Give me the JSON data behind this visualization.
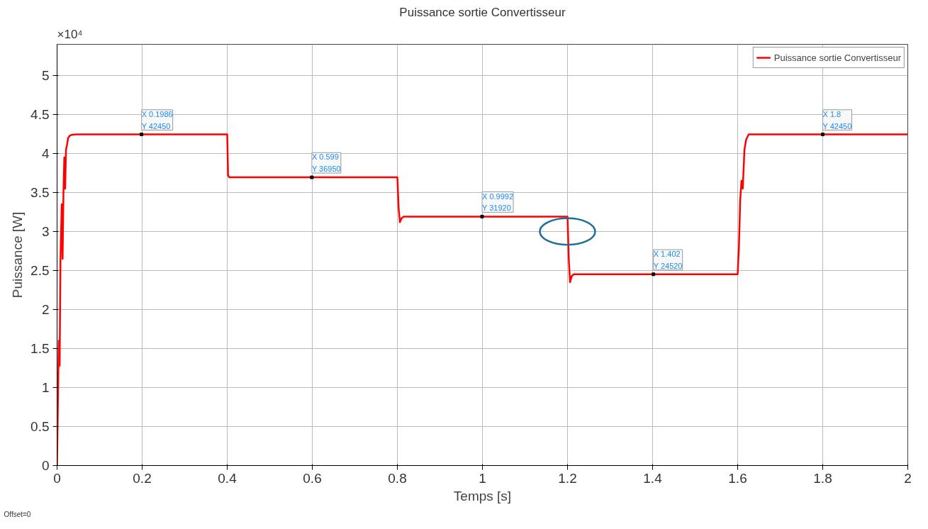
{
  "chart_data": {
    "type": "line",
    "title": "Puissance sortie Convertisseur",
    "xlabel": "Temps [s]",
    "ylabel": "Puissance [W]",
    "x": [
      0,
      0.004,
      0.006,
      0.008,
      0.011,
      0.013,
      0.015,
      0.017,
      0.019,
      0.021,
      0.023,
      0.026,
      0.03,
      0.035,
      0.045,
      0.4,
      0.402,
      0.405,
      0.8,
      0.803,
      0.806,
      0.81,
      0.815,
      1.2,
      1.203,
      1.206,
      1.21,
      1.215,
      1.6,
      1.603,
      1.606,
      1.609,
      1.612,
      1.616,
      1.62,
      1.626,
      2
    ],
    "series": [
      {
        "name": "Puissance sortie Convertisseur",
        "color": "#ff0000",
        "values": [
          0,
          1.6,
          1.28,
          2.65,
          3.35,
          2.65,
          3.5,
          3.95,
          3.55,
          4.05,
          4.1,
          4.2,
          4.23,
          4.24,
          4.245,
          4.245,
          3.72,
          3.695,
          3.695,
          3.3,
          3.12,
          3.17,
          3.192,
          3.192,
          2.65,
          2.35,
          2.43,
          2.452,
          2.452,
          2.8,
          3.4,
          3.65,
          3.55,
          4.05,
          4.18,
          4.245,
          4.245
        ]
      }
    ],
    "xlim": [
      0,
      2
    ],
    "xticks": [
      0,
      0.2,
      0.4,
      0.6,
      0.8,
      1,
      1.2,
      1.4,
      1.6,
      1.8,
      2
    ],
    "ylim": [
      0,
      5.4
    ],
    "yticks": [
      0,
      0.5,
      1,
      1.5,
      2,
      2.5,
      3,
      3.5,
      4,
      4.5,
      5
    ],
    "annotations": [
      "×10⁴",
      "Offset=0",
      {
        "text": "X 0.1986\nY 42450",
        "x": 0.1986,
        "y": 4.245
      },
      {
        "text": "X 0.599\nY 36950",
        "x": 0.599,
        "y": 3.695
      },
      {
        "text": "X 0.9992\nY 31920",
        "x": 0.9992,
        "y": 3.192
      },
      {
        "text": "X 1.402\nY 24520",
        "x": 1.402,
        "y": 2.452
      },
      {
        "text": "X 1.8\nY 42450",
        "x": 1.8,
        "y": 4.245
      }
    ],
    "grid": true,
    "legend": "top right",
    "line_style": "solid",
    "marker": "none"
  }
}
